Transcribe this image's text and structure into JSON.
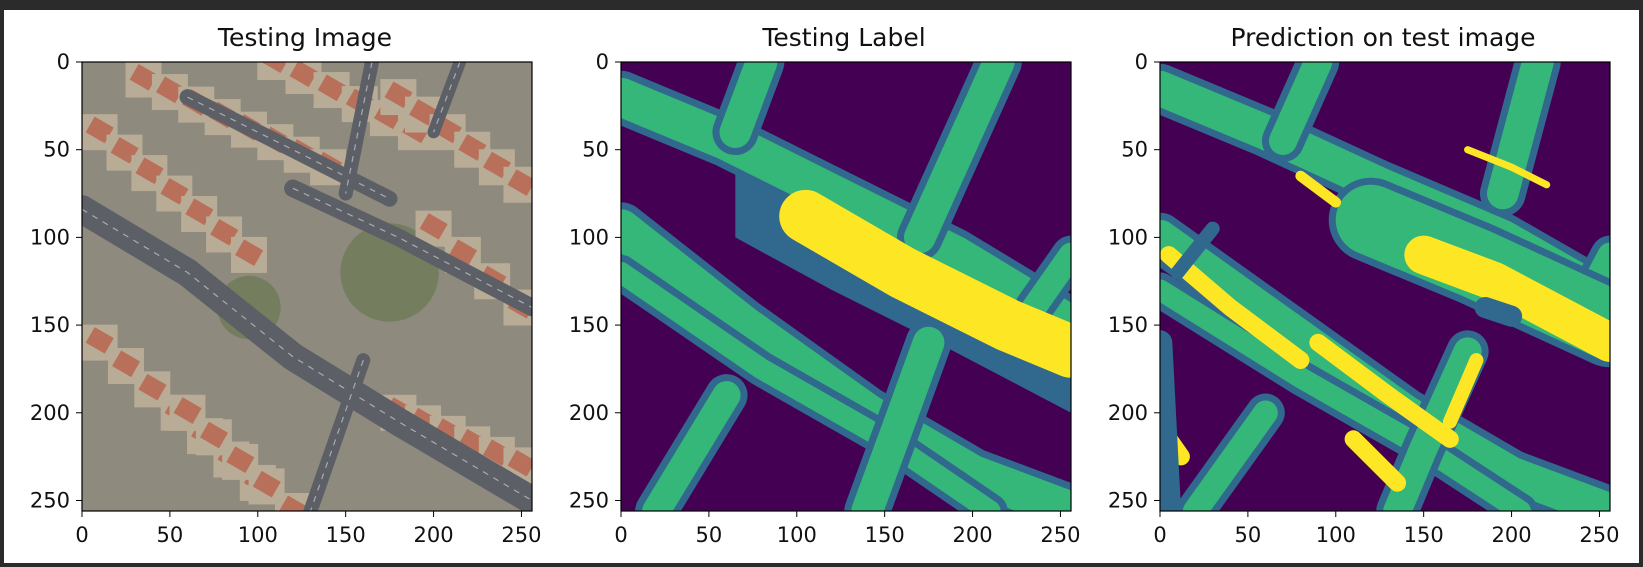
{
  "figure": {
    "background": "#ffffff",
    "frame_color": "#2b2b2b"
  },
  "colors": {
    "class_0": "#440154",
    "class_1": "#31688e",
    "class_2": "#35b779",
    "class_3": "#fde725",
    "roof": "#b8705a",
    "road": "#5c5f66",
    "vegetation": "#6e7b58",
    "soil": "#b8ac96"
  },
  "chart_data": [
    {
      "type": "heatmap",
      "title": "Testing Image",
      "xlabel": "",
      "ylabel": "",
      "xlim": [
        0,
        256
      ],
      "ylim": [
        256,
        0
      ],
      "xticks": [
        0,
        50,
        100,
        150,
        200,
        250
      ],
      "yticks": [
        0,
        50,
        100,
        150,
        200,
        250
      ],
      "colormap": "RGB satellite image",
      "grid": false,
      "features": {
        "roads": [
          {
            "name": "main road",
            "points": [
              [
                0,
                84
              ],
              [
                60,
                120
              ],
              [
                120,
                168
              ],
              [
                180,
                205
              ],
              [
                256,
                250
              ]
            ],
            "width": 16
          },
          {
            "name": "upper road",
            "points": [
              [
                120,
                72
              ],
              [
                180,
                100
              ],
              [
                256,
                140
              ]
            ],
            "width": 10
          },
          {
            "name": "diagonal road",
            "points": [
              [
                60,
                20
              ],
              [
                120,
                50
              ],
              [
                175,
                78
              ]
            ],
            "width": 9
          },
          {
            "name": "cross road",
            "points": [
              [
                165,
                0
              ],
              [
                150,
                75
              ]
            ],
            "width": 8
          },
          {
            "name": "cross road",
            "points": [
              [
                215,
                0
              ],
              [
                200,
                40
              ]
            ],
            "width": 7
          },
          {
            "name": "cross road",
            "points": [
              [
                160,
                170
              ],
              [
                130,
                256
              ]
            ],
            "width": 8
          }
        ],
        "roof_rows": [
          {
            "from": [
              10,
              40
            ],
            "to": [
              95,
              110
            ],
            "count": 7
          },
          {
            "from": [
              35,
              10
            ],
            "to": [
              140,
              60
            ],
            "count": 8
          },
          {
            "from": [
              110,
              0
            ],
            "to": [
              190,
              40
            ],
            "count": 6
          },
          {
            "from": [
              180,
              20
            ],
            "to": [
              250,
              70
            ],
            "count": 6
          },
          {
            "from": [
              200,
              95
            ],
            "to": [
              250,
              140
            ],
            "count": 4
          },
          {
            "from": [
              10,
              160
            ],
            "to": [
              100,
              240
            ],
            "count": 7
          },
          {
            "from": [
              180,
              200
            ],
            "to": [
              250,
              230
            ],
            "count": 6
          },
          {
            "from": [
              60,
              200
            ],
            "to": [
              120,
              256
            ],
            "count": 5
          }
        ],
        "vegetation_zones": [
          {
            "center": [
              175,
              120
            ],
            "radius": 28
          },
          {
            "center": [
              95,
              140
            ],
            "radius": 18
          }
        ]
      }
    },
    {
      "type": "heatmap",
      "title": "Testing Label",
      "xlabel": "",
      "ylabel": "",
      "xlim": [
        0,
        256
      ],
      "ylim": [
        256,
        0
      ],
      "xticks": [
        0,
        50,
        100,
        150,
        200,
        250
      ],
      "yticks": [
        0,
        50,
        100,
        150,
        200,
        250
      ],
      "colormap": "viridis",
      "classes": [
        0,
        1,
        2,
        3
      ],
      "grid": false,
      "regions": [
        {
          "class": 1,
          "points": [
            [
              65,
              55
            ],
            [
              120,
              80
            ],
            [
              180,
              110
            ],
            [
              256,
              160
            ],
            [
              256,
              200
            ],
            [
              180,
              160
            ],
            [
              120,
              130
            ],
            [
              65,
              100
            ]
          ],
          "width": 0
        },
        {
          "class": 2,
          "points": [
            [
              0,
              20
            ],
            [
              60,
              45
            ],
            [
              120,
              75
            ],
            [
              190,
              110
            ],
            [
              256,
              150
            ]
          ],
          "width": 22
        },
        {
          "class": 2,
          "points": [
            [
              0,
              95
            ],
            [
              70,
              150
            ],
            [
              140,
              200
            ],
            [
              200,
              235
            ],
            [
              256,
              256
            ]
          ],
          "width": 22
        },
        {
          "class": 2,
          "points": [
            [
              0,
              120
            ],
            [
              80,
              175
            ],
            [
              150,
              215
            ],
            [
              210,
              256
            ]
          ],
          "width": 12
        },
        {
          "class": 2,
          "points": [
            [
              80,
              0
            ],
            [
              65,
              40
            ]
          ],
          "width": 18
        },
        {
          "class": 2,
          "points": [
            [
              215,
              0
            ],
            [
              170,
              100
            ]
          ],
          "width": 18
        },
        {
          "class": 2,
          "points": [
            [
              256,
              110
            ],
            [
              235,
              140
            ]
          ],
          "width": 14
        },
        {
          "class": 2,
          "points": [
            [
              175,
              160
            ],
            [
              155,
              215
            ],
            [
              140,
              256
            ]
          ],
          "width": 18
        },
        {
          "class": 2,
          "points": [
            [
              60,
              190
            ],
            [
              20,
              256
            ]
          ],
          "width": 16
        },
        {
          "class": 3,
          "points": [
            [
              105,
              88
            ],
            [
              160,
              120
            ],
            [
              220,
              150
            ],
            [
              256,
              165
            ]
          ],
          "width": 30
        }
      ]
    },
    {
      "type": "heatmap",
      "title": "Prediction on test image",
      "xlabel": "",
      "ylabel": "",
      "xlim": [
        0,
        256
      ],
      "ylim": [
        256,
        0
      ],
      "xticks": [
        0,
        50,
        100,
        150,
        200,
        250
      ],
      "yticks": [
        0,
        50,
        100,
        150,
        200,
        250
      ],
      "colormap": "viridis",
      "classes": [
        0,
        1,
        2,
        3
      ],
      "grid": false,
      "regions": [
        {
          "class": 2,
          "points": [
            [
              0,
              15
            ],
            [
              60,
              40
            ],
            [
              125,
              70
            ],
            [
              195,
              100
            ],
            [
              256,
              135
            ]
          ],
          "width": 20
        },
        {
          "class": 2,
          "points": [
            [
              0,
              100
            ],
            [
              70,
              150
            ],
            [
              140,
              200
            ],
            [
              200,
              235
            ],
            [
              256,
              256
            ]
          ],
          "width": 20
        },
        {
          "class": 2,
          "points": [
            [
              0,
              130
            ],
            [
              80,
              180
            ],
            [
              150,
              220
            ],
            [
              205,
              256
            ]
          ],
          "width": 12
        },
        {
          "class": 2,
          "points": [
            [
              90,
              0
            ],
            [
              70,
              45
            ]
          ],
          "width": 16
        },
        {
          "class": 2,
          "points": [
            [
              215,
              0
            ],
            [
              195,
              75
            ]
          ],
          "width": 18
        },
        {
          "class": 2,
          "points": [
            [
              256,
              110
            ],
            [
              240,
              140
            ]
          ],
          "width": 14
        },
        {
          "class": 2,
          "points": [
            [
              175,
              165
            ],
            [
              150,
              220
            ],
            [
              135,
              256
            ]
          ],
          "width": 16
        },
        {
          "class": 2,
          "points": [
            [
              120,
              90
            ],
            [
              180,
              115
            ],
            [
              256,
              150
            ]
          ],
          "width": 40
        },
        {
          "class": 2,
          "points": [
            [
              60,
              200
            ],
            [
              20,
              256
            ]
          ],
          "width": 14
        },
        {
          "class": 3,
          "points": [
            [
              150,
              110
            ],
            [
              190,
              125
            ],
            [
              256,
              160
            ]
          ],
          "width": 22
        },
        {
          "class": 3,
          "points": [
            [
              5,
              110
            ],
            [
              40,
              140
            ],
            [
              80,
              170
            ]
          ],
          "width": 10
        },
        {
          "class": 3,
          "points": [
            [
              90,
              160
            ],
            [
              130,
              190
            ],
            [
              165,
              215
            ]
          ],
          "width": 10
        },
        {
          "class": 3,
          "points": [
            [
              110,
              215
            ],
            [
              135,
              240
            ]
          ],
          "width": 10
        },
        {
          "class": 3,
          "points": [
            [
              180,
              170
            ],
            [
              165,
              205
            ]
          ],
          "width": 8
        },
        {
          "class": 3,
          "points": [
            [
              5,
              215
            ],
            [
              12,
              225
            ]
          ],
          "width": 10
        },
        {
          "class": 1,
          "points": [
            [
              185,
              140
            ],
            [
              200,
              145
            ]
          ],
          "width": 12
        },
        {
          "class": 1,
          "points": [
            [
              0,
              160
            ],
            [
              5,
              256
            ]
          ],
          "width": 14
        },
        {
          "class": 1,
          "points": [
            [
              30,
              95
            ],
            [
              10,
              120
            ]
          ],
          "width": 8
        },
        {
          "class": 3,
          "points": [
            [
              175,
              50
            ],
            [
              200,
              60
            ],
            [
              220,
              70
            ]
          ],
          "width": 4
        },
        {
          "class": 3,
          "points": [
            [
              80,
              65
            ],
            [
              100,
              80
            ]
          ],
          "width": 6
        }
      ]
    }
  ]
}
